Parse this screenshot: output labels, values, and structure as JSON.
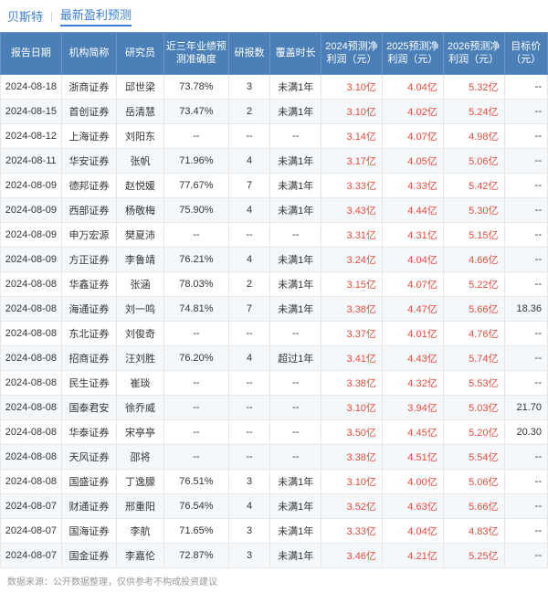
{
  "header": {
    "stock": "贝斯特",
    "title": "最新盈利预测"
  },
  "columns": [
    "报告日期",
    "机构简称",
    "研究员",
    "近三年业绩预测准确度",
    "研报数",
    "覆盖时长",
    "2024预测净利润（元）",
    "2025预测净利润（元）",
    "2026预测净利润（元）",
    "目标价（元）"
  ],
  "rows": [
    {
      "date": "2024-08-18",
      "org": "浙商证券",
      "res": "邱世梁",
      "acc": "73.78%",
      "cnt": "3",
      "cov": "未满1年",
      "p24": "3.10亿",
      "p25": "4.04亿",
      "p26": "5.32亿",
      "tgt": "--"
    },
    {
      "date": "2024-08-15",
      "org": "首创证券",
      "res": "岳清慧",
      "acc": "73.47%",
      "cnt": "2",
      "cov": "未满1年",
      "p24": "3.10亿",
      "p25": "4.02亿",
      "p26": "5.24亿",
      "tgt": "--"
    },
    {
      "date": "2024-08-12",
      "org": "上海证券",
      "res": "刘阳东",
      "acc": "--",
      "cnt": "--",
      "cov": "--",
      "p24": "3.14亿",
      "p25": "4.07亿",
      "p26": "4.98亿",
      "tgt": "--"
    },
    {
      "date": "2024-08-11",
      "org": "华安证券",
      "res": "张帆",
      "acc": "71.96%",
      "cnt": "4",
      "cov": "未满1年",
      "p24": "3.17亿",
      "p25": "4.05亿",
      "p26": "5.06亿",
      "tgt": "--"
    },
    {
      "date": "2024-08-09",
      "org": "德邦证券",
      "res": "赵悦媛",
      "acc": "77.67%",
      "cnt": "7",
      "cov": "未满1年",
      "p24": "3.33亿",
      "p25": "4.33亿",
      "p26": "5.42亿",
      "tgt": "--"
    },
    {
      "date": "2024-08-09",
      "org": "西部证券",
      "res": "杨敬梅",
      "acc": "75.90%",
      "cnt": "4",
      "cov": "未满1年",
      "p24": "3.43亿",
      "p25": "4.44亿",
      "p26": "5.30亿",
      "tgt": "--"
    },
    {
      "date": "2024-08-09",
      "org": "申万宏源",
      "res": "樊夏沛",
      "acc": "--",
      "cnt": "--",
      "cov": "--",
      "p24": "3.31亿",
      "p25": "4.31亿",
      "p26": "5.15亿",
      "tgt": "--"
    },
    {
      "date": "2024-08-09",
      "org": "方正证券",
      "res": "李鲁靖",
      "acc": "76.21%",
      "cnt": "4",
      "cov": "未满1年",
      "p24": "3.24亿",
      "p25": "4.04亿",
      "p26": "4.66亿",
      "tgt": "--"
    },
    {
      "date": "2024-08-08",
      "org": "华鑫证券",
      "res": "张涵",
      "acc": "78.03%",
      "cnt": "2",
      "cov": "未满1年",
      "p24": "3.15亿",
      "p25": "4.07亿",
      "p26": "5.22亿",
      "tgt": "--"
    },
    {
      "date": "2024-08-08",
      "org": "海通证券",
      "res": "刘一鸣",
      "acc": "74.81%",
      "cnt": "7",
      "cov": "未满1年",
      "p24": "3.38亿",
      "p25": "4.47亿",
      "p26": "5.66亿",
      "tgt": "18.36"
    },
    {
      "date": "2024-08-08",
      "org": "东北证券",
      "res": "刘俊奇",
      "acc": "--",
      "cnt": "--",
      "cov": "--",
      "p24": "3.37亿",
      "p25": "4.01亿",
      "p26": "4.76亿",
      "tgt": "--"
    },
    {
      "date": "2024-08-08",
      "org": "招商证券",
      "res": "汪刘胜",
      "acc": "76.20%",
      "cnt": "4",
      "cov": "超过1年",
      "p24": "3.41亿",
      "p25": "4.43亿",
      "p26": "5.74亿",
      "tgt": "--"
    },
    {
      "date": "2024-08-08",
      "org": "民生证券",
      "res": "崔琰",
      "acc": "--",
      "cnt": "--",
      "cov": "--",
      "p24": "3.38亿",
      "p25": "4.32亿",
      "p26": "5.53亿",
      "tgt": "--"
    },
    {
      "date": "2024-08-08",
      "org": "国泰君安",
      "res": "徐乔威",
      "acc": "--",
      "cnt": "--",
      "cov": "--",
      "p24": "3.10亿",
      "p25": "3.94亿",
      "p26": "5.03亿",
      "tgt": "21.70"
    },
    {
      "date": "2024-08-08",
      "org": "华泰证券",
      "res": "宋亭亭",
      "acc": "--",
      "cnt": "--",
      "cov": "--",
      "p24": "3.50亿",
      "p25": "4.45亿",
      "p26": "5.20亿",
      "tgt": "20.30"
    },
    {
      "date": "2024-08-08",
      "org": "天风证券",
      "res": "邵将",
      "acc": "--",
      "cnt": "--",
      "cov": "--",
      "p24": "3.38亿",
      "p25": "4.51亿",
      "p26": "5.54亿",
      "tgt": "--"
    },
    {
      "date": "2024-08-08",
      "org": "国盛证券",
      "res": "丁逸朦",
      "acc": "76.51%",
      "cnt": "3",
      "cov": "未满1年",
      "p24": "3.10亿",
      "p25": "4.00亿",
      "p26": "5.06亿",
      "tgt": "--"
    },
    {
      "date": "2024-08-07",
      "org": "财通证券",
      "res": "邢重阳",
      "acc": "76.54%",
      "cnt": "4",
      "cov": "未满1年",
      "p24": "3.52亿",
      "p25": "4.63亿",
      "p26": "5.66亿",
      "tgt": "--"
    },
    {
      "date": "2024-08-07",
      "org": "国海证券",
      "res": "李航",
      "acc": "71.65%",
      "cnt": "3",
      "cov": "未满1年",
      "p24": "3.33亿",
      "p25": "4.04亿",
      "p26": "4.83亿",
      "tgt": "--"
    },
    {
      "date": "2024-08-07",
      "org": "国金证券",
      "res": "李嘉伦",
      "acc": "72.87%",
      "cnt": "3",
      "cov": "未满1年",
      "p24": "3.46亿",
      "p25": "4.21亿",
      "p26": "5.25亿",
      "tgt": "--"
    }
  ],
  "footer": "数据来源：公开数据整理，仅供参考不构成投资建议"
}
